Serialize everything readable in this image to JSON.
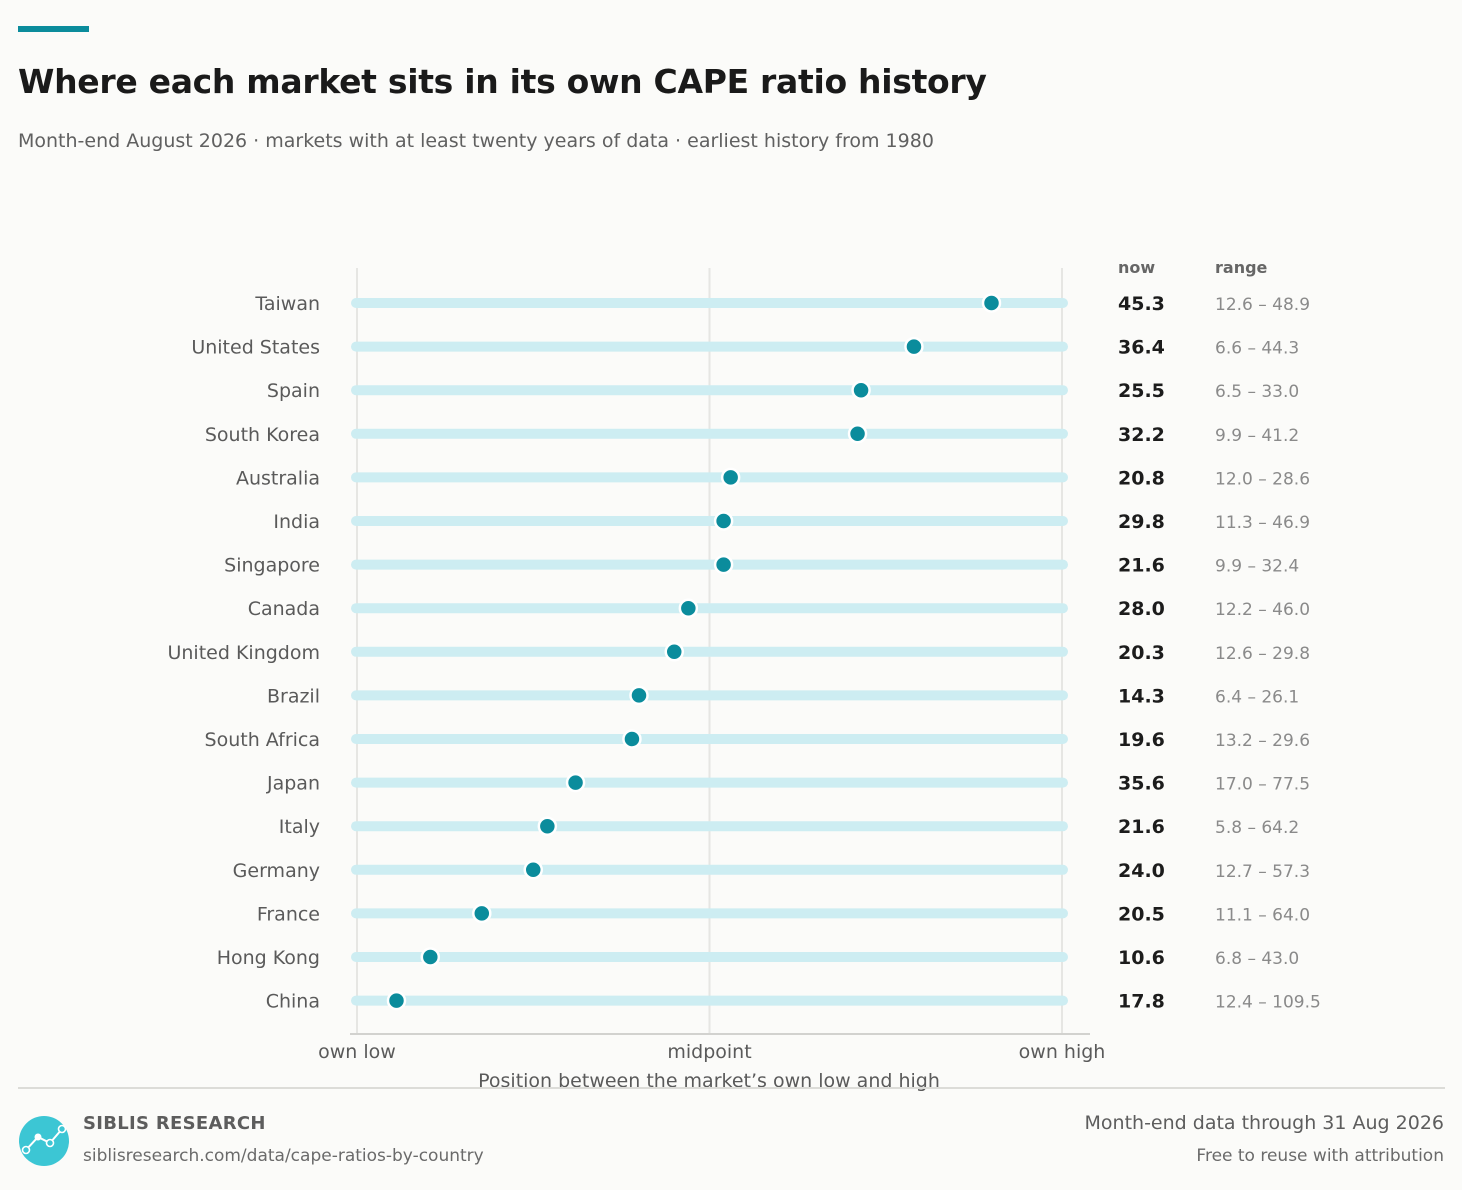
{
  "header": {
    "title": "Where each market sits in its own CAPE ratio history",
    "subtitle": "Month-end August 2026 · markets with at least twenty years of data · earliest history from 1980"
  },
  "colors": {
    "accent": "#0b8c9c",
    "track": "#cdedf2",
    "dot": "#0b8c9c",
    "grid": "#e6e6e3"
  },
  "chart_data": {
    "type": "scatter",
    "xlabel": "Position between the market’s own low and high",
    "xlim": [
      0,
      1
    ],
    "x_ticks": [
      {
        "value": 0,
        "label": "own low"
      },
      {
        "value": 0.5,
        "label": "midpoint"
      },
      {
        "value": 1,
        "label": "own high"
      }
    ],
    "column_headers": {
      "now": "now",
      "range": "range"
    },
    "grid": true,
    "rows": [
      {
        "name": "Taiwan",
        "now": "45.3",
        "range": "12.6 – 48.9",
        "position": 0.9
      },
      {
        "name": "United States",
        "now": "36.4",
        "range": "6.6 – 44.3",
        "position": 0.79
      },
      {
        "name": "Spain",
        "now": "25.5",
        "range": "6.5 – 33.0",
        "position": 0.715
      },
      {
        "name": "South Korea",
        "now": "32.2",
        "range": "9.9 – 41.2",
        "position": 0.71
      },
      {
        "name": "Australia",
        "now": "20.8",
        "range": "12.0 – 28.6",
        "position": 0.53
      },
      {
        "name": "India",
        "now": "29.8",
        "range": "11.3 – 46.9",
        "position": 0.52
      },
      {
        "name": "Singapore",
        "now": "21.6",
        "range": "9.9 – 32.4",
        "position": 0.52
      },
      {
        "name": "Canada",
        "now": "28.0",
        "range": "12.2 – 46.0",
        "position": 0.47
      },
      {
        "name": "United Kingdom",
        "now": "20.3",
        "range": "12.6 – 29.8",
        "position": 0.45
      },
      {
        "name": "Brazil",
        "now": "14.3",
        "range": "6.4 – 26.1",
        "position": 0.4
      },
      {
        "name": "South Africa",
        "now": "19.6",
        "range": "13.2 – 29.6",
        "position": 0.39
      },
      {
        "name": "Japan",
        "now": "35.6",
        "range": "17.0 – 77.5",
        "position": 0.31
      },
      {
        "name": "Italy",
        "now": "21.6",
        "range": "5.8 – 64.2",
        "position": 0.27
      },
      {
        "name": "Germany",
        "now": "24.0",
        "range": "12.7 – 57.3",
        "position": 0.25
      },
      {
        "name": "France",
        "now": "20.5",
        "range": "11.1 – 64.0",
        "position": 0.177
      },
      {
        "name": "Hong Kong",
        "now": "10.6",
        "range": "6.8 – 43.0",
        "position": 0.104
      },
      {
        "name": "China",
        "now": "17.8",
        "range": "12.4 – 109.5",
        "position": 0.056
      }
    ]
  },
  "footer": {
    "brand": "SIBLIS RESEARCH",
    "url": "siblisresearch.com/data/cape-ratios-by-country",
    "data_note": "Month-end data through 31 Aug 2026",
    "license": "Free to reuse with attribution",
    "logo_icon": "line-chart-logo-icon"
  }
}
